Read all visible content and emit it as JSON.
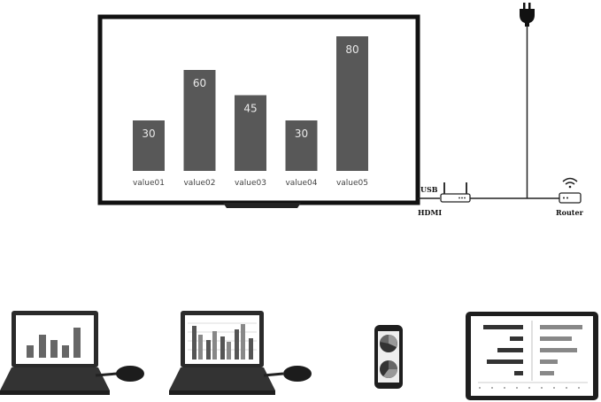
{
  "tv": {
    "chart_data": {
      "type": "bar",
      "categories": [
        "value01",
        "value02",
        "value03",
        "value04",
        "value05"
      ],
      "values": [
        30,
        60,
        45,
        30,
        80
      ],
      "ylim": [
        0,
        100
      ],
      "bar_color": "#585858"
    }
  },
  "dongle": {
    "usb_label": "USB",
    "hdmi_label": "HDMI"
  },
  "router": {
    "label": "Router"
  },
  "colors": {
    "frame": "#111111",
    "bar": "#585858",
    "device": "#2a2a2a"
  },
  "icons": [
    "power-plug-icon",
    "wifi-icon",
    "router-icon",
    "usb-dongle-icon",
    "laptop-icon",
    "smartphone-icon",
    "tablet-icon"
  ]
}
